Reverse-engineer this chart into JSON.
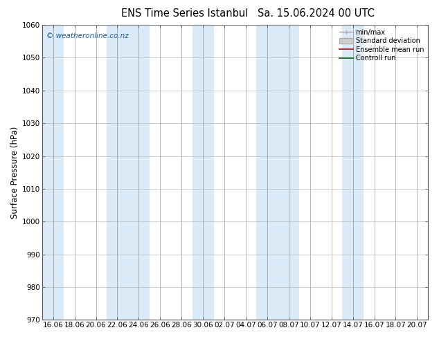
{
  "title_left": "ENS Time Series Istanbul",
  "title_right": "Sa. 15.06.2024 00 UTC",
  "ylabel": "Surface Pressure (hPa)",
  "ylim": [
    970,
    1060
  ],
  "yticks": [
    970,
    980,
    990,
    1000,
    1010,
    1020,
    1030,
    1040,
    1050,
    1060
  ],
  "xtick_labels": [
    "16.06",
    "18.06",
    "20.06",
    "22.06",
    "24.06",
    "26.06",
    "28.06",
    "30.06",
    "02.07",
    "04.07",
    "06.07",
    "08.07",
    "10.07",
    "12.07",
    "14.07",
    "16.07",
    "18.07",
    "20.07"
  ],
  "watermark": "© weatheronline.co.nz",
  "legend_items": [
    "min/max",
    "Standard deviation",
    "Ensemble mean run",
    "Controll run"
  ],
  "background_color": "#ffffff",
  "band_color": "#daeaf6",
  "title_fontsize": 10.5,
  "tick_fontsize": 7.5,
  "ylabel_fontsize": 8.5,
  "fig_width": 6.34,
  "fig_height": 4.9,
  "dpi": 100,
  "blue_band_indices": [
    0,
    3,
    4,
    7,
    10,
    11,
    14
  ],
  "watermark_color": "#1a5fb4"
}
